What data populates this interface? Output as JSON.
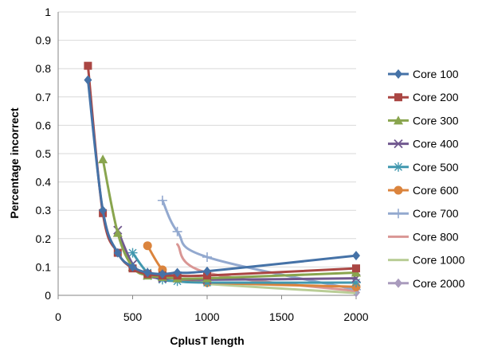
{
  "chart_data": {
    "type": "line",
    "title": "",
    "xlabel": "CplusT length",
    "ylabel": "Percentage incorrect",
    "xlim": [
      0,
      2000
    ],
    "ylim": [
      0,
      1
    ],
    "xticks": [
      0,
      500,
      1000,
      1500,
      2000
    ],
    "yticks": [
      0,
      0.1,
      0.2,
      0.3,
      0.4,
      0.5,
      0.6,
      0.7,
      0.8,
      0.9,
      1
    ],
    "grid": "horizontal",
    "legend_position": "right",
    "series": [
      {
        "name": "Core 100",
        "color": "#4572A7",
        "marker": "diamond",
        "x": [
          200,
          300,
          400,
          500,
          600,
          700,
          800,
          1000,
          2000
        ],
        "y": [
          0.76,
          0.3,
          0.15,
          0.1,
          0.08,
          0.075,
          0.08,
          0.085,
          0.14
        ]
      },
      {
        "name": "Core 200",
        "color": "#AA4643",
        "marker": "square",
        "x": [
          200,
          300,
          400,
          500,
          600,
          700,
          800,
          1000,
          2000
        ],
        "y": [
          0.81,
          0.29,
          0.15,
          0.095,
          0.075,
          0.07,
          0.07,
          0.07,
          0.095
        ]
      },
      {
        "name": "Core 300",
        "color": "#89A54E",
        "marker": "triangle",
        "x": [
          300,
          400,
          500,
          600,
          700,
          800,
          1000,
          2000
        ],
        "y": [
          0.48,
          0.22,
          0.1,
          0.07,
          0.065,
          0.06,
          0.06,
          0.08
        ]
      },
      {
        "name": "Core 400",
        "color": "#71588F",
        "marker": "x",
        "x": [
          400,
          500,
          600,
          700,
          800,
          1000,
          2000
        ],
        "y": [
          0.23,
          0.11,
          0.07,
          0.06,
          0.06,
          0.055,
          0.06
        ]
      },
      {
        "name": "Core 500",
        "color": "#4198AF",
        "marker": "star",
        "x": [
          500,
          600,
          700,
          800,
          1000,
          2000
        ],
        "y": [
          0.15,
          0.08,
          0.055,
          0.05,
          0.045,
          0.045
        ]
      },
      {
        "name": "Core 600",
        "color": "#DB843D",
        "marker": "circle",
        "x": [
          600,
          700,
          800,
          1000,
          2000
        ],
        "y": [
          0.175,
          0.09,
          0.06,
          0.045,
          0.03
        ]
      },
      {
        "name": "Core 700",
        "color": "#93A9CF",
        "marker": "plus",
        "x": [
          700,
          800,
          1000,
          2000
        ],
        "y": [
          0.335,
          0.225,
          0.135,
          0.02
        ]
      },
      {
        "name": "Core 800",
        "color": "#D99694",
        "marker": "none",
        "x": [
          800,
          1000,
          2000
        ],
        "y": [
          0.18,
          0.08,
          0.015
        ]
      },
      {
        "name": "Core 1000",
        "color": "#B9CD96",
        "marker": "none",
        "x": [
          1000,
          2000
        ],
        "y": [
          0.04,
          0.008
        ]
      },
      {
        "name": "Core 2000",
        "color": "#A99BBD",
        "marker": "diamond",
        "x": [
          2000
        ],
        "y": [
          0.01
        ]
      }
    ]
  }
}
